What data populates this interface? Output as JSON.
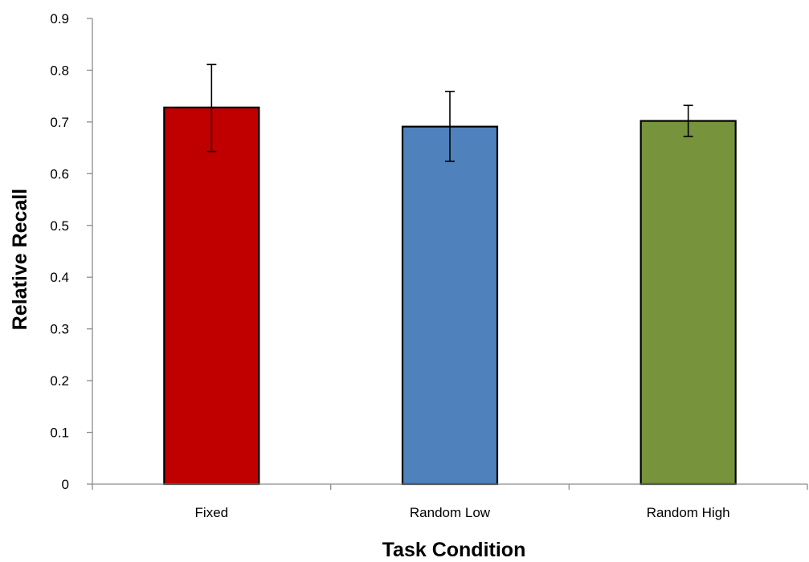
{
  "chart_data": {
    "type": "bar",
    "title": "",
    "xlabel": "Task Condition",
    "ylabel": "Relative Recall",
    "categories": [
      "Fixed",
      "Random Low",
      "Random High"
    ],
    "values": [
      0.728,
      0.691,
      0.702
    ],
    "error_low": [
      0.643,
      0.624,
      0.672
    ],
    "error_high": [
      0.811,
      0.759,
      0.732
    ],
    "colors": [
      "#c00000",
      "#4f81bd",
      "#77933c"
    ],
    "ylim": [
      0,
      0.9
    ],
    "yticks": [
      "0",
      "0.1",
      "0.2",
      "0.3",
      "0.4",
      "0.5",
      "0.6",
      "0.7",
      "0.8",
      "0.9"
    ],
    "grid": false,
    "legend": "none"
  }
}
